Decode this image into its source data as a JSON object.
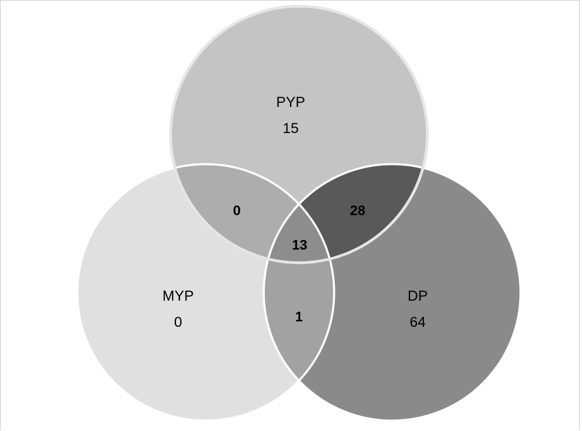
{
  "sets": {
    "pyp": {
      "label": "PYP",
      "count": "15",
      "color": "#c4c4c4"
    },
    "myp": {
      "label": "MYP",
      "count": "0",
      "color": "#e0e0e0"
    },
    "dp": {
      "label": "DP",
      "count": "64",
      "color": "#8a8a8a"
    }
  },
  "intersections": {
    "pyp_myp": "0",
    "pyp_dp": "28",
    "myp_dp": "1",
    "all": "13"
  },
  "colors": {
    "pyp_myp": "#adadad",
    "pyp_dp": "#595959",
    "myp_dp": "#a2a2a2",
    "all": "#8d8d8d",
    "border_pyp": "#e6e6e6",
    "border_other": "#ffffff"
  }
}
